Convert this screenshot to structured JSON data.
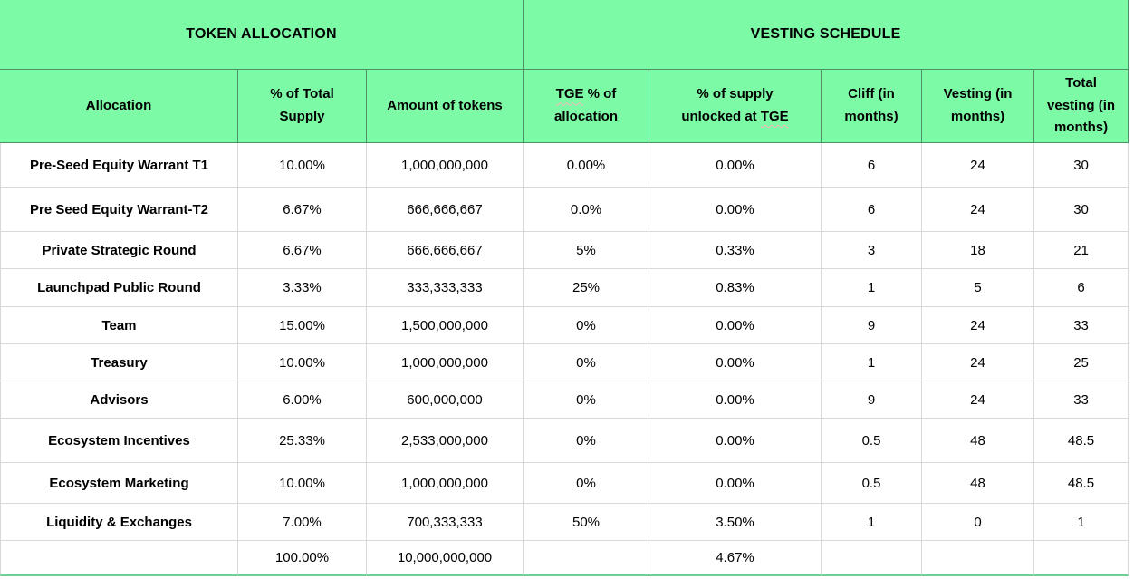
{
  "table": {
    "section_headers": {
      "token_allocation": "TOKEN ALLOCATION",
      "vesting_schedule": "VESTING SCHEDULE"
    },
    "column_headers": {
      "allocation": "Allocation",
      "pct_total_supply": "% of Total Supply",
      "amount_of_tokens": "Amount of tokens",
      "tge_pct_of_allocation": {
        "tge": "TGE",
        "rest": " % of allocation"
      },
      "pct_supply_unlocked": {
        "line1": "% of supply",
        "line2_prefix": "unlocked at ",
        "tge": "TGE"
      },
      "cliff": "Cliff (in months)",
      "vesting": "Vesting (in months)",
      "total_vesting": "Total vesting (in months)"
    },
    "rows": [
      [
        "Pre-Seed Equity Warrant T1",
        "10.00%",
        "1,000,000,000",
        "0.00%",
        "0.00%",
        "6",
        "24",
        "30"
      ],
      [
        "Pre Seed Equity Warrant-T2",
        "6.67%",
        "666,666,667",
        "0.0%",
        "0.00%",
        "6",
        "24",
        "30"
      ],
      [
        "Private Strategic Round",
        "6.67%",
        "666,666,667",
        "5%",
        "0.33%",
        "3",
        "18",
        "21"
      ],
      [
        "Launchpad Public Round",
        "3.33%",
        "333,333,333",
        "25%",
        "0.83%",
        "1",
        "5",
        "6"
      ],
      [
        "Team",
        "15.00%",
        "1,500,000,000",
        "0%",
        "0.00%",
        "9",
        "24",
        "33"
      ],
      [
        "Treasury",
        "10.00%",
        "1,000,000,000",
        "0%",
        "0.00%",
        "1",
        "24",
        "25"
      ],
      [
        "Advisors",
        "6.00%",
        "600,000,000",
        "0%",
        "0.00%",
        "9",
        "24",
        "33"
      ],
      [
        "Ecosystem Incentives",
        "25.33%",
        "2,533,000,000",
        "0%",
        "0.00%",
        "0.5",
        "48",
        "48.5"
      ],
      [
        "Ecosystem Marketing",
        "10.00%",
        "1,000,000,000",
        "0%",
        "0.00%",
        "0.5",
        "48",
        "48.5"
      ],
      [
        "Liquidity & Exchanges",
        "7.00%",
        "700,333,333",
        "50%",
        "3.50%",
        "1",
        "0",
        "1"
      ],
      [
        "",
        "100.00%",
        "10,000,000,000",
        "",
        "4.67%",
        "",
        "",
        ""
      ]
    ],
    "totals_row_index": 10
  },
  "colors": {
    "header_green": "#7dfaa5",
    "header_grid_green": "#4e9068",
    "data_grid_gray": "#d9d9d9",
    "bottom_border_green": "#6fce92",
    "spellcheck_squiggle": "#f0b8b8",
    "text": "#000000"
  }
}
